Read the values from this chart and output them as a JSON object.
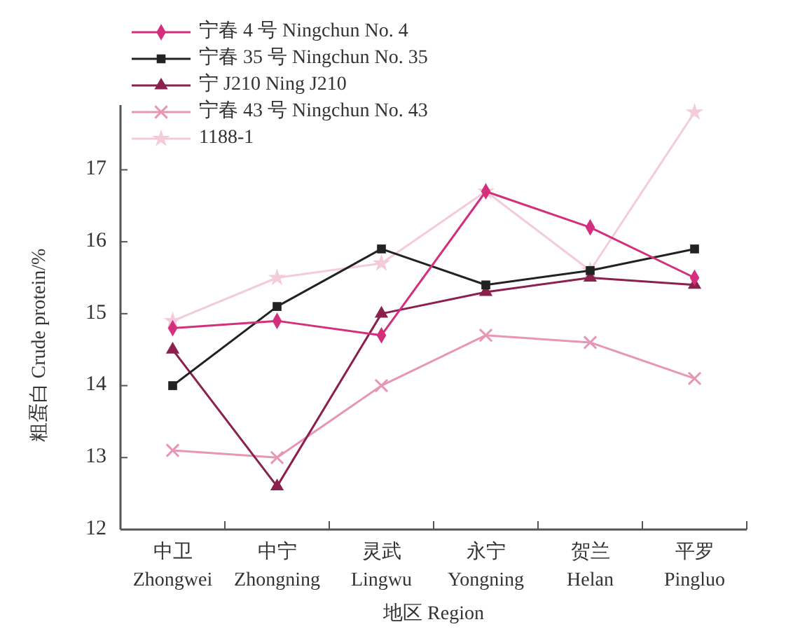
{
  "chart_data": {
    "type": "line",
    "xlabel": "地区 Region",
    "ylabel": "粗蛋白 Crude protein/%",
    "categories": [
      "中卫\nZhongwei",
      "中宁\nZhongning",
      "灵武\nLingwu",
      "永宁\nYongning",
      "贺兰\nHelan",
      "平罗\nPingluo"
    ],
    "ylim": [
      12,
      17.9
    ],
    "yticks": [
      12,
      13,
      14,
      15,
      16,
      17
    ],
    "grid": false,
    "legend": "top left",
    "line_style": "solid",
    "series": [
      {
        "name": "宁春 4 号 Ningchun No. 4",
        "color": "#d42f7c",
        "marker": "diamond",
        "values": [
          14.8,
          14.9,
          14.7,
          16.7,
          16.2,
          15.5
        ]
      },
      {
        "name": "宁春 35 号 Ningchun No. 35",
        "color": "#222222",
        "marker": "square",
        "values": [
          14.0,
          15.1,
          15.9,
          15.4,
          15.6,
          15.9
        ]
      },
      {
        "name": "宁 J210 Ning J210",
        "color": "#8b1f4e",
        "marker": "triangle",
        "values": [
          14.5,
          12.6,
          15.0,
          15.3,
          15.5,
          15.4
        ]
      },
      {
        "name": "宁春 43 号 Ningchun No. 43",
        "color": "#e796b6",
        "marker": "cross",
        "values": [
          13.1,
          13.0,
          14.0,
          14.7,
          14.6,
          14.1
        ]
      },
      {
        "name": "1188-1",
        "color": "#f3cbd9",
        "marker": "star",
        "values": [
          14.9,
          15.5,
          15.7,
          16.7,
          15.6,
          17.8
        ]
      }
    ]
  }
}
